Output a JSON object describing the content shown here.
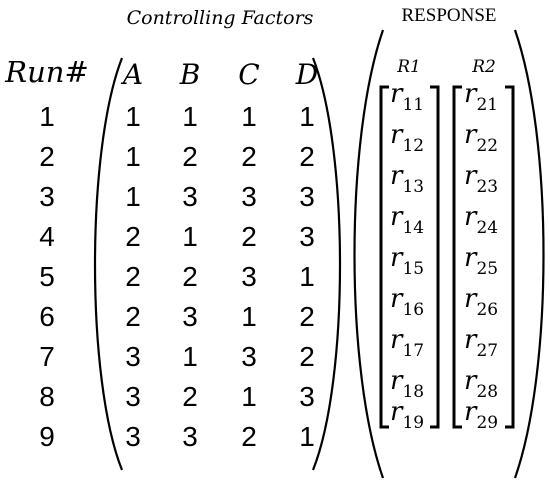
{
  "header": {
    "controlling_factors": "Controlling Factors",
    "response": "RESPONSE"
  },
  "run_label": "Run#",
  "factors": [
    "A",
    "B",
    "C",
    "D"
  ],
  "runs": [
    "1",
    "2",
    "3",
    "4",
    "5",
    "6",
    "7",
    "8",
    "9"
  ],
  "matrix": [
    [
      "1",
      "1",
      "1",
      "1"
    ],
    [
      "1",
      "2",
      "2",
      "2"
    ],
    [
      "1",
      "3",
      "3",
      "3"
    ],
    [
      "2",
      "1",
      "2",
      "3"
    ],
    [
      "2",
      "2",
      "3",
      "1"
    ],
    [
      "2",
      "3",
      "1",
      "2"
    ],
    [
      "3",
      "1",
      "3",
      "2"
    ],
    [
      "3",
      "2",
      "1",
      "3"
    ],
    [
      "3",
      "3",
      "2",
      "1"
    ]
  ],
  "responses": [
    {
      "label": "R1",
      "letter": "r",
      "subs": [
        "11",
        "12",
        "13",
        "14",
        "15",
        "16",
        "17",
        "18",
        "19"
      ]
    },
    {
      "label": "R2",
      "letter": "r",
      "subs": [
        "21",
        "22",
        "23",
        "24",
        "25",
        "26",
        "27",
        "28",
        "29"
      ]
    }
  ]
}
